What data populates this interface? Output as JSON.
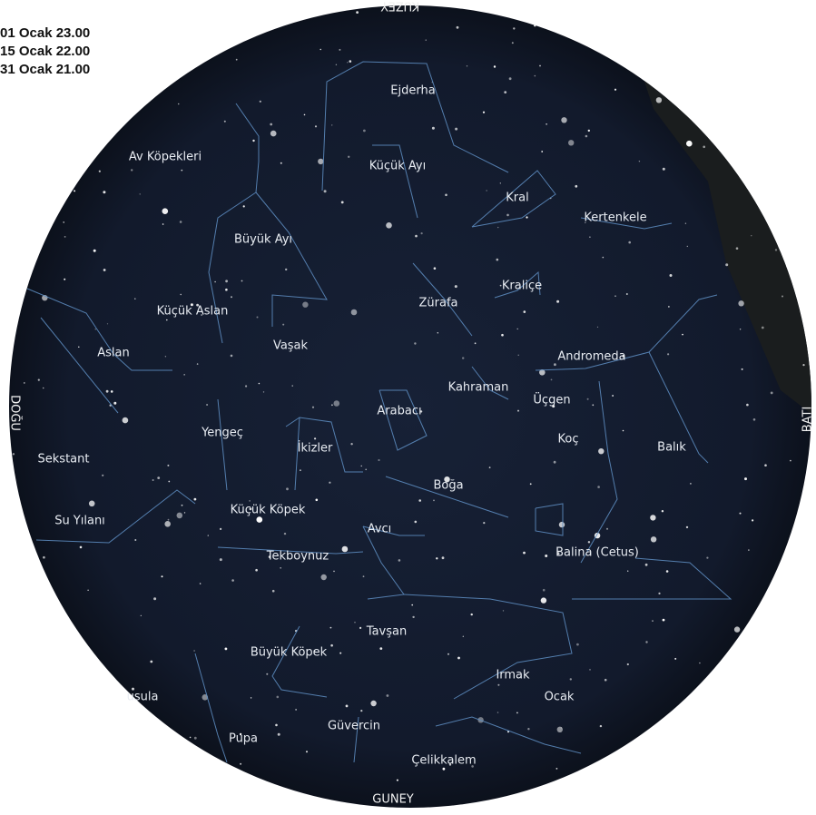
{
  "header": {
    "dates": [
      "01 Ocak 23.00",
      "15 Ocak 22.00",
      "31 Ocak 21.00"
    ]
  },
  "compass": {
    "north": "KUZEY",
    "east": "DOĞU",
    "west": "BATI",
    "south": "GUNEY"
  },
  "labels": [
    "Ejderha",
    "Küçük Ayı",
    "Av Köpekleri",
    "Kral",
    "Kertenkele",
    "Büyük Ayı",
    "Kraliçe",
    "Zürafa",
    "Küçük Aslan",
    "Vaşak",
    "Aslan",
    "Andromeda",
    "Kahraman",
    "Üçgen",
    "Arabacı",
    "Yengeç",
    "Koç",
    "İkizler",
    "Balık",
    "Sekstant",
    "Boğa",
    "Küçük Köpek",
    "Su Yılanı",
    "Avcı",
    "Balina (Cetus)",
    "Tekboynuz",
    "Tavşan",
    "Büyük Köpek",
    "Irmak",
    "usula",
    "Ocak",
    "Güvercin",
    "Pupa",
    "Çelikkalem"
  ]
}
